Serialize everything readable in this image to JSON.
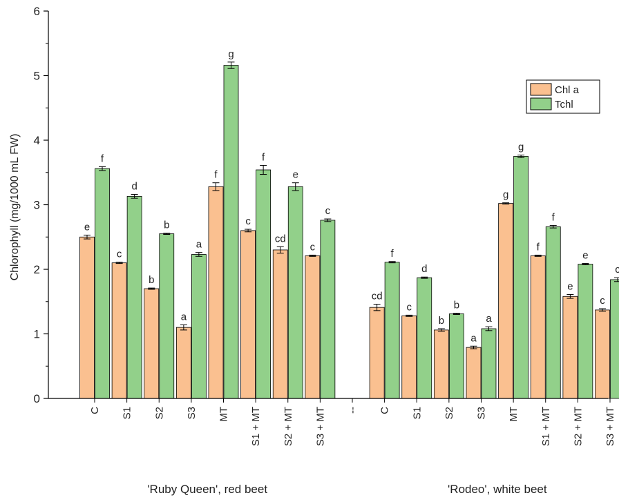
{
  "chart_data": {
    "type": "bar",
    "title": "",
    "xlabel": "",
    "ylabel": "Chlorophyll (mg/1000 mL FW)",
    "ylim": [
      0,
      6
    ],
    "yticks": [
      "0",
      "1",
      "2",
      "3",
      "4",
      "5",
      "6"
    ],
    "grid": false,
    "legend_position": "top-right",
    "categories": [
      "C",
      "S1",
      "S2",
      "S3",
      "MT",
      "S1 + MT",
      "S2 + MT",
      "S3 + MT",
      "--",
      "C",
      "S1",
      "S2",
      "S3",
      "MT",
      "S1 + MT",
      "S2 + MT",
      "S3 + MT"
    ],
    "groups": [
      {
        "label": "'Ruby Queen', red beet",
        "category_range": [
          0,
          7
        ]
      },
      {
        "label": "'Rodeo', white beet",
        "category_range": [
          9,
          16
        ]
      }
    ],
    "series": [
      {
        "name": "Chl a",
        "color": "#FAC090",
        "values": [
          2.5,
          2.1,
          1.7,
          1.1,
          3.28,
          2.6,
          2.3,
          2.21,
          null,
          1.41,
          1.28,
          1.06,
          0.79,
          3.02,
          2.21,
          1.58,
          1.37
        ],
        "errors": [
          0.03,
          0.01,
          0.01,
          0.04,
          0.06,
          0.02,
          0.05,
          0.01,
          null,
          0.05,
          0.01,
          0.02,
          0.02,
          0.01,
          0.01,
          0.03,
          0.02
        ],
        "significance": [
          "e",
          "c",
          "b",
          "a",
          "f",
          "c",
          "cd",
          "c",
          "",
          "cd",
          "c",
          "b",
          "a",
          "g",
          "f",
          "e",
          "c"
        ]
      },
      {
        "name": "Tchl",
        "color": "#92D08A",
        "values": [
          3.56,
          3.13,
          2.55,
          2.23,
          5.16,
          3.54,
          3.28,
          2.76,
          null,
          2.11,
          1.87,
          1.31,
          1.08,
          3.75,
          2.66,
          2.08,
          1.84
        ],
        "errors": [
          0.03,
          0.03,
          0.01,
          0.03,
          0.05,
          0.07,
          0.06,
          0.02,
          null,
          0.01,
          0.01,
          0.01,
          0.03,
          0.02,
          0.02,
          0.01,
          0.03
        ],
        "significance": [
          "f",
          "d",
          "b",
          "a",
          "g",
          "f",
          "e",
          "c",
          "",
          "f",
          "d",
          "b",
          "a",
          "g",
          "f",
          "e",
          "c"
        ]
      }
    ]
  }
}
